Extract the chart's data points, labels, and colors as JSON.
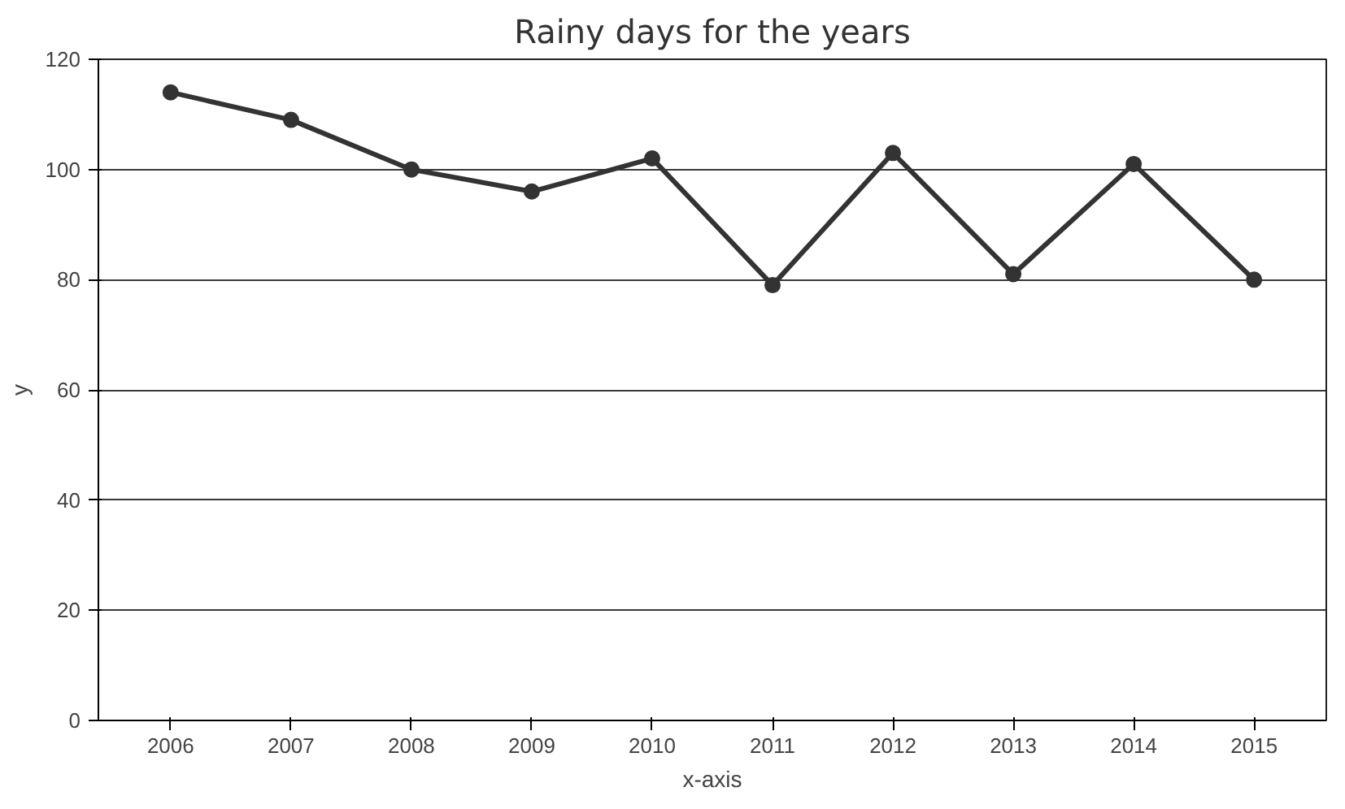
{
  "chart_data": {
    "type": "line",
    "title": "Rainy days for the years",
    "xlabel": "x-axis",
    "ylabel": "y",
    "categories": [
      "2006",
      "2007",
      "2008",
      "2009",
      "2010",
      "2011",
      "2012",
      "2013",
      "2014",
      "2015"
    ],
    "series": [
      {
        "color": "#333333",
        "values": [
          114,
          109,
          100,
          96,
          102,
          79,
          103,
          81,
          101,
          80
        ]
      }
    ],
    "ylim": [
      0,
      120
    ],
    "yticks": [
      0,
      20,
      40,
      60,
      80,
      100,
      120
    ],
    "grid": "y",
    "marker": "circle",
    "line_style": "solid"
  }
}
